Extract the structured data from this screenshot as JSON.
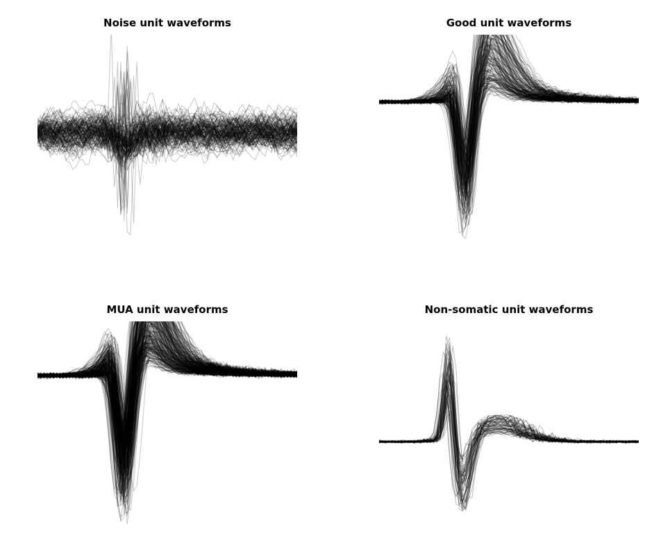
{
  "chart_data": [
    {
      "type": "line",
      "title": "Noise unit waveforms",
      "xlabel": "",
      "ylabel": "",
      "axes_visible": false,
      "grid": false,
      "xlim": [
        0,
        81
      ],
      "ylim": [
        -1.1,
        0.9
      ],
      "n_traces": 150,
      "stroke_color": "#000000",
      "stroke_opacity": 0.22,
      "trace_model": "noise",
      "mean_waveform": [
        {
          "x": 0,
          "y": 0.0
        },
        {
          "x": 20,
          "y": 0.0
        },
        {
          "x": 27,
          "y": -0.2
        },
        {
          "x": 40,
          "y": 0.0
        },
        {
          "x": 81,
          "y": 0.0
        }
      ]
    },
    {
      "type": "line",
      "title": "Good unit waveforms",
      "xlabel": "",
      "ylabel": "",
      "axes_visible": false,
      "grid": false,
      "xlim": [
        0,
        81
      ],
      "ylim": [
        -1.0,
        0.45
      ],
      "n_traces": 200,
      "stroke_color": "#000000",
      "stroke_opacity": 0.22,
      "trace_model": "spike",
      "mean_waveform": [
        {
          "x": 0,
          "y": 0.0
        },
        {
          "x": 18,
          "y": 0.0
        },
        {
          "x": 23,
          "y": 0.08
        },
        {
          "x": 27,
          "y": -0.72
        },
        {
          "x": 33,
          "y": 0.3
        },
        {
          "x": 45,
          "y": 0.12
        },
        {
          "x": 81,
          "y": 0.0
        }
      ]
    },
    {
      "type": "line",
      "title": "MUA unit waveforms",
      "xlabel": "",
      "ylabel": "",
      "axes_visible": false,
      "grid": false,
      "xlim": [
        0,
        81
      ],
      "ylim": [
        -0.9,
        0.3
      ],
      "n_traces": 320,
      "stroke_color": "#000000",
      "stroke_opacity": 0.22,
      "trace_model": "spike",
      "mean_waveform": [
        {
          "x": 0,
          "y": 0.0
        },
        {
          "x": 18,
          "y": 0.0
        },
        {
          "x": 22,
          "y": 0.08
        },
        {
          "x": 27,
          "y": -0.5
        },
        {
          "x": 33,
          "y": 0.22
        },
        {
          "x": 45,
          "y": 0.1
        },
        {
          "x": 81,
          "y": 0.0
        }
      ]
    },
    {
      "type": "line",
      "title": "Non-somatic unit waveforms",
      "xlabel": "",
      "ylabel": "",
      "axes_visible": false,
      "grid": false,
      "xlim": [
        0,
        81
      ],
      "ylim": [
        -0.6,
        0.75
      ],
      "n_traces": 60,
      "stroke_color": "#000000",
      "stroke_opacity": 0.26,
      "trace_model": "nonsomatic",
      "mean_waveform": [
        {
          "x": 0,
          "y": 0.0
        },
        {
          "x": 18,
          "y": 0.0
        },
        {
          "x": 22,
          "y": 0.45
        },
        {
          "x": 26,
          "y": -0.42
        },
        {
          "x": 35,
          "y": 0.1
        },
        {
          "x": 81,
          "y": 0.0
        }
      ]
    }
  ]
}
